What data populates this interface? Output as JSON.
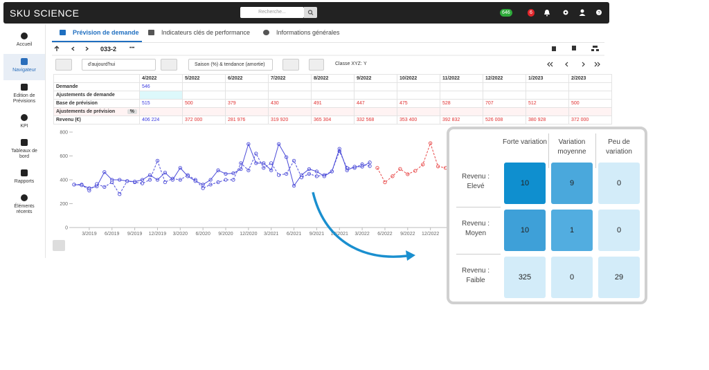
{
  "topbar": {
    "brand": "SKU SCIENCE",
    "search_placeholder": "Recherche...",
    "badges": [
      {
        "text": "646",
        "color": "#2eaa3a"
      },
      {
        "text": "6",
        "color": "#e0262b"
      }
    ]
  },
  "sidebar": {
    "items": [
      "Accueil",
      "Navigateur",
      "Edition de Prévisions",
      "KPI",
      "Tableaux de bord",
      "Rapports",
      "Éléments récents"
    ],
    "active": 1
  },
  "tabs": {
    "items": [
      "Prévision de demande",
      "Indicateurs clés de performance",
      "Informations générales"
    ],
    "active": 0
  },
  "toolbar": {
    "item": "033-2",
    "more": "•••"
  },
  "controls": {
    "period": "d'aujourd'hui",
    "method": "Saison (%) & tendance (amortie)",
    "class_label": "Classe XYZ:",
    "class_value": "Y"
  },
  "table": {
    "columns": [
      "4/2022",
      "5/2022",
      "6/2022",
      "7/2022",
      "8/2022",
      "9/2022",
      "10/2022",
      "11/2022",
      "12/2022",
      "1/2023",
      "2/2023"
    ],
    "rows": [
      {
        "label": "Demande",
        "cells": [
          "546",
          null,
          null,
          null,
          null,
          null,
          null,
          null,
          null,
          null,
          null
        ]
      },
      {
        "label": "Ajustements de demande",
        "cells": [
          null,
          null,
          null,
          null,
          null,
          null,
          null,
          null,
          null,
          null,
          null
        ]
      },
      {
        "label": "Base de prévision",
        "cells": [
          "515",
          "500",
          "379",
          "430",
          "491",
          "447",
          "475",
          "528",
          "707",
          "512",
          "500"
        ]
      },
      {
        "label": "Ajustements de prévision",
        "badge": "%",
        "cells": [
          null,
          null,
          null,
          null,
          null,
          null,
          null,
          null,
          null,
          null,
          null
        ]
      },
      {
        "label": "Revenu (€)",
        "cells": [
          "406 224",
          "372 000",
          "281 976",
          "319 920",
          "365 304",
          "332 568",
          "353 400",
          "392 832",
          "526 008",
          "380 928",
          "372 000"
        ]
      }
    ]
  },
  "chart_data": {
    "type": "line",
    "categories": [
      null,
      null,
      "3/2019",
      null,
      null,
      "6/2019",
      null,
      null,
      "9/2019",
      null,
      null,
      "12/2019",
      null,
      null,
      "3/2020",
      null,
      null,
      "6/2020",
      null,
      null,
      "9/2020",
      null,
      null,
      "12/2020",
      null,
      null,
      "3/2021",
      null,
      null,
      "6/2021",
      null,
      null,
      "9/2021",
      null,
      null,
      "12/2021",
      null,
      null,
      "3/2022",
      null,
      null,
      "6/2022",
      null,
      null,
      "9/2022",
      null,
      null,
      "12/2022",
      null,
      null
    ],
    "series": [
      {
        "color": "#4b4bd8",
        "dashed": false,
        "values": [
          360,
          355,
          330,
          345,
          465,
          400,
          400,
          390,
          385,
          400,
          440,
          400,
          460,
          400,
          500,
          430,
          390,
          360,
          400,
          480,
          450,
          455,
          490,
          700,
          540,
          540,
          480,
          700,
          590,
          350,
          440,
          490,
          470,
          430,
          470,
          660,
          480,
          510,
          510,
          546,
          null,
          null,
          null,
          null,
          null,
          null,
          null,
          null,
          null,
          null
        ]
      },
      {
        "color": "#4b4bd8",
        "dashed": true,
        "values": [
          360,
          360,
          310,
          365,
          340,
          380,
          280,
          390,
          380,
          370,
          400,
          560,
          380,
          410,
          400,
          440,
          400,
          330,
          360,
          380,
          400,
          400,
          540,
          480,
          620,
          500,
          540,
          440,
          450,
          560,
          420,
          450,
          430,
          440,
          470,
          640,
          500,
          500,
          530,
          515,
          null,
          null,
          null,
          null,
          null,
          null,
          null,
          null,
          null,
          null
        ]
      },
      {
        "color": "#e84848",
        "dashed": true,
        "values": [
          null,
          null,
          null,
          null,
          null,
          null,
          null,
          null,
          null,
          null,
          null,
          null,
          null,
          null,
          null,
          null,
          null,
          null,
          null,
          null,
          null,
          null,
          null,
          null,
          null,
          null,
          null,
          null,
          null,
          null,
          null,
          null,
          null,
          null,
          null,
          null,
          null,
          null,
          null,
          null,
          500,
          379,
          430,
          491,
          447,
          475,
          528,
          707,
          512,
          500
        ]
      }
    ],
    "ylim": [
      0,
      800
    ],
    "yticks": [
      0,
      200,
      400,
      600,
      800
    ]
  },
  "matrix": {
    "columns": [
      "Forte variation",
      "Variation moyenne",
      "Peu de variation"
    ],
    "rows": [
      "Revenu : Elevé",
      "Revenu : Moyen",
      "Revenu : Faible"
    ],
    "values": [
      [
        10,
        9,
        0
      ],
      [
        10,
        1,
        0
      ],
      [
        325,
        0,
        29
      ]
    ],
    "colors": [
      [
        "#0f8fcf",
        "#4aa8dc",
        "#d3ecf9"
      ],
      [
        "#3ea0d8",
        "#52ade0",
        "#d3ecf9"
      ],
      [
        "#d3ecf9",
        "#d3ecf9",
        "#d3ecf9"
      ]
    ]
  }
}
